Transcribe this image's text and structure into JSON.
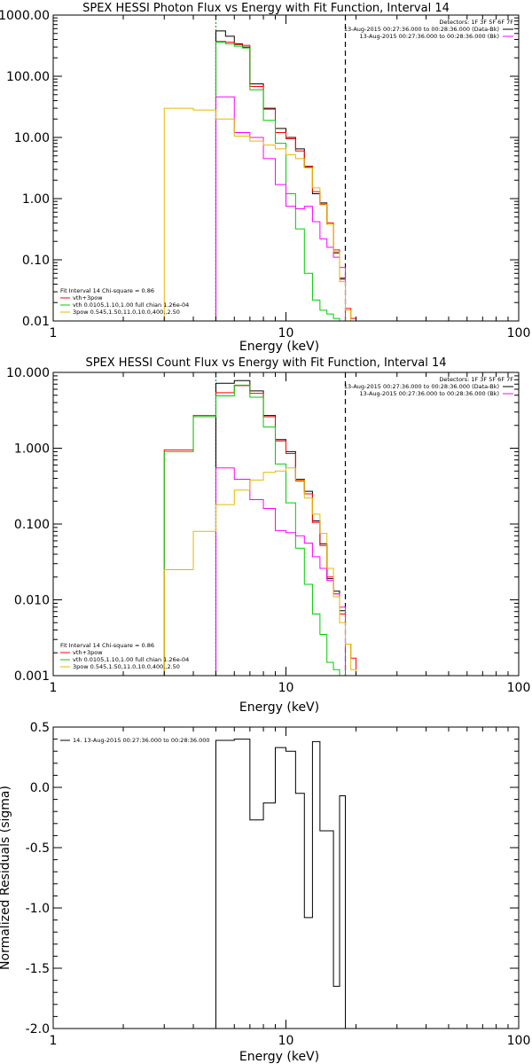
{
  "chart_data": [
    {
      "type": "line",
      "title": "SPEX HESSI Photon Flux vs Energy with Fit Function, Interval 14",
      "xlabel": "Energy (keV)",
      "ylabel": "",
      "xscale": "log",
      "yscale": "log",
      "xlim": [
        1,
        100
      ],
      "ylim": [
        0.01,
        1000
      ],
      "xticks": [
        {
          "v": 1,
          "label": "1"
        },
        {
          "v": 10,
          "label": "10"
        },
        {
          "v": 100,
          "label": "100"
        }
      ],
      "yticks": [
        {
          "v": 1000,
          "label": "1000.00"
        },
        {
          "v": 100,
          "label": "100.00"
        },
        {
          "v": 10,
          "label": "10.00"
        },
        {
          "v": 1,
          "label": "1.00"
        },
        {
          "v": 0.1,
          "label": "0.10"
        },
        {
          "v": 0.01,
          "label": "0.01"
        }
      ],
      "vlines": [
        {
          "x": 5.0,
          "color": "#ff00ff",
          "style": "dotted"
        },
        {
          "x": 5.0,
          "color": "#00cc00",
          "style": "dotted"
        },
        {
          "x": 18.0,
          "color": "#000000",
          "style": "dashed"
        }
      ],
      "right_labels": [
        {
          "text": "Detectors: 1F 3F 5F 6F 7F",
          "color": "#000000"
        },
        {
          "text": "13-Aug-2015 00:27:36.000 to 00:28:36.000 (Data-Bk)",
          "color": "#000000",
          "swatch": "#000000"
        },
        {
          "text": "13-Aug-2015 00:27:36.000 to 00:28:36.000 (Bk)",
          "color": "#000000",
          "swatch": "#ff00ff"
        }
      ],
      "left_labels": [
        {
          "text": "Fit Interval 14   Chi-square = 0.86",
          "color": "#000000"
        },
        {
          "text": "vth+3pow",
          "color": "#000000",
          "swatch": "#ff0000"
        },
        {
          "text": "vth 0.0105,1.10,1.00  full chian 1.26e-04",
          "color": "#000000",
          "swatch": "#00cc00"
        },
        {
          "text": "3pow 0.545,1.50,11.0,10.0,400.,2.50",
          "color": "#000000",
          "swatch": "#e6b800"
        }
      ],
      "series": [
        {
          "color": "#000000",
          "edges": [
            5.0,
            5.5,
            6.0,
            6.5,
            7.0,
            8.0,
            9.0,
            10.0,
            11.0,
            12.0,
            13.0,
            14.0,
            15.0,
            16.0,
            17.0,
            18.0
          ],
          "values": [
            550,
            450,
            340,
            300,
            75,
            30,
            14,
            10,
            6.5,
            3.3,
            1.2,
            0.85,
            0.38,
            0.13,
            0.05
          ]
        },
        {
          "color": "#ff0000",
          "edges": [
            5.0,
            5.5,
            6.0,
            6.5,
            7.0,
            8.0,
            9.0,
            10.0,
            11.0,
            12.0,
            13.0,
            14.0,
            15.0,
            16.0,
            17.0,
            18.0,
            19.0,
            20.0
          ],
          "values": [
            370,
            360,
            330,
            320,
            68,
            29,
            12,
            9.5,
            6,
            3.4,
            1.3,
            0.8,
            0.4,
            0.145,
            0.048,
            0.016,
            0.011
          ]
        },
        {
          "color": "#00cc00",
          "edges": [
            5.0,
            5.5,
            6.0,
            6.5,
            7.0,
            8.0,
            9.0,
            10.0,
            11.0,
            12.0,
            13.0,
            14.0,
            15.0,
            16.0,
            17.0
          ],
          "values": [
            360,
            340,
            310,
            290,
            60,
            19,
            8,
            1.2,
            0.32,
            0.06,
            0.022,
            0.015,
            0.013,
            0.011
          ]
        },
        {
          "color": "#ff00ff",
          "edges": [
            5.0,
            6.0,
            7.0,
            8.0,
            9.0,
            10.0,
            11.0,
            12.0,
            13.0,
            14.0,
            15.0,
            16.0,
            17.0,
            18.0
          ],
          "values": [
            46,
            12,
            10,
            4.5,
            1.7,
            0.75,
            0.68,
            0.75,
            0.42,
            0.22,
            0.16,
            0.11,
            0.075
          ]
        },
        {
          "color": "#e6b800",
          "edges": [
            3.0,
            4.0,
            5.0,
            6.0,
            7.0,
            8.0,
            9.0,
            10.0,
            11.0,
            12.0,
            13.0,
            14.0,
            15.0,
            16.0,
            17.0,
            18.0,
            19.0,
            20.0
          ],
          "values": [
            30,
            28,
            20,
            10.5,
            8.7,
            7.5,
            6.5,
            5.2,
            4.5,
            3.2,
            1.5,
            0.82,
            0.38,
            0.135,
            0.044,
            0.015,
            0.01
          ]
        }
      ]
    },
    {
      "type": "line",
      "title": "SPEX HESSI Count Flux vs Energy with Fit Function, Interval 14",
      "xlabel": "Energy (keV)",
      "ylabel": "",
      "xscale": "log",
      "yscale": "log",
      "xlim": [
        1,
        100
      ],
      "ylim": [
        0.001,
        10
      ],
      "xticks": [
        {
          "v": 1,
          "label": "1"
        },
        {
          "v": 10,
          "label": "10"
        },
        {
          "v": 100,
          "label": "100"
        }
      ],
      "yticks": [
        {
          "v": 10,
          "label": "10.000"
        },
        {
          "v": 1,
          "label": "1.000"
        },
        {
          "v": 0.1,
          "label": "0.100"
        },
        {
          "v": 0.01,
          "label": "0.010"
        },
        {
          "v": 0.001,
          "label": "0.001"
        }
      ],
      "vlines": [
        {
          "x": 5.0,
          "color": "#ff00ff",
          "style": "dotted"
        },
        {
          "x": 5.0,
          "color": "#00cc00",
          "style": "dotted"
        },
        {
          "x": 18.0,
          "color": "#000000",
          "style": "dashed"
        }
      ],
      "right_labels": [
        {
          "text": "Detectors: 1F 3F 5F 6F 7F",
          "color": "#000000"
        },
        {
          "text": "13-Aug-2015 00:27:36.000 to 00:28:36.000 (Data-Bk)",
          "color": "#000000",
          "swatch": "#000000"
        },
        {
          "text": "13-Aug-2015 00:27:36.000 to 00:28:36.000 (Bk)",
          "color": "#000000",
          "swatch": "#ff00ff"
        }
      ],
      "left_labels": [
        {
          "text": "Fit Interval 14   Chi-square = 0.86",
          "color": "#000000"
        },
        {
          "text": "vth+3pow",
          "color": "#000000",
          "swatch": "#ff0000"
        },
        {
          "text": "vth 0.0105,1.10,1.00  full chian 1.26e-04",
          "color": "#000000",
          "swatch": "#00cc00"
        },
        {
          "text": "3pow 0.545,1.50,11.0,10.0,400.,2.50",
          "color": "#000000",
          "swatch": "#e6b800"
        }
      ],
      "series": [
        {
          "color": "#000000",
          "edges": [
            5.0,
            6.0,
            7.0,
            8.0,
            9.0,
            10.0,
            11.0,
            12.0,
            13.0,
            14.0,
            15.0,
            16.0,
            17.0,
            18.0
          ],
          "values": [
            7.2,
            7.8,
            5.7,
            2.7,
            1.3,
            0.9,
            0.39,
            0.27,
            0.11,
            0.055,
            0.019,
            0.013,
            0.0072
          ]
        },
        {
          "color": "#ff0000",
          "edges": [
            3.0,
            4.0,
            5.0,
            6.0,
            7.0,
            8.0,
            9.0,
            10.0,
            11.0,
            12.0,
            13.0,
            14.0,
            15.0,
            16.0,
            17.0,
            18.0,
            19.0,
            20.0
          ],
          "values": [
            0.95,
            2.7,
            5.4,
            6.7,
            5.3,
            2.6,
            1.25,
            0.85,
            0.37,
            0.25,
            0.105,
            0.052,
            0.02,
            0.012,
            0.0065,
            0.0026,
            0.0017
          ]
        },
        {
          "color": "#00cc00",
          "edges": [
            3.0,
            4.0,
            5.0,
            6.0,
            7.0,
            8.0,
            9.0,
            10.0,
            11.0,
            12.0,
            13.0,
            14.0,
            15.0,
            16.0,
            17.0
          ],
          "values": [
            0.9,
            2.6,
            4.9,
            6.8,
            4.7,
            1.9,
            0.62,
            0.19,
            0.048,
            0.016,
            0.0065,
            0.0035,
            0.0015,
            0.0012
          ]
        },
        {
          "color": "#ff00ff",
          "edges": [
            5.0,
            6.0,
            7.0,
            8.0,
            9.0,
            10.0,
            11.0,
            12.0,
            13.0,
            14.0,
            15.0,
            16.0,
            17.0,
            18.0
          ],
          "values": [
            0.55,
            0.39,
            0.21,
            0.16,
            0.082,
            0.077,
            0.07,
            0.056,
            0.037,
            0.026,
            0.018,
            0.012,
            0.008
          ]
        },
        {
          "color": "#e6b800",
          "edges": [
            3.0,
            4.0,
            5.0,
            6.0,
            7.0,
            8.0,
            9.0,
            10.0,
            11.0,
            12.0,
            13.0,
            14.0,
            15.0,
            16.0,
            17.0,
            18.0,
            19.0,
            20.0
          ],
          "values": [
            0.025,
            0.08,
            0.18,
            0.28,
            0.38,
            0.48,
            0.5,
            0.55,
            0.38,
            0.22,
            0.135,
            0.075,
            0.026,
            0.011,
            0.005,
            0.0026,
            0.0012
          ]
        }
      ]
    },
    {
      "type": "line",
      "title": "",
      "xlabel": "Energy (keV)",
      "ylabel": "Normalized Residuals (sigma)",
      "xscale": "log",
      "yscale": "linear",
      "xlim": [
        1,
        100
      ],
      "ylim": [
        -2.0,
        0.5
      ],
      "xticks": [
        {
          "v": 1,
          "label": "1"
        },
        {
          "v": 10,
          "label": "10"
        },
        {
          "v": 100,
          "label": "100"
        }
      ],
      "yticks": [
        {
          "v": 0.5,
          "label": "0.5"
        },
        {
          "v": 0.0,
          "label": "0.0"
        },
        {
          "v": -0.5,
          "label": "-0.5"
        },
        {
          "v": -1.0,
          "label": "-1.0"
        },
        {
          "v": -1.5,
          "label": "-1.5"
        },
        {
          "v": -2.0,
          "label": "-2.0"
        }
      ],
      "vlines": [],
      "right_labels": [],
      "left_labels": [
        {
          "text": "14. 13-Aug-2015 00:27:36.000 to 00:28:36.000",
          "color": "#000000",
          "swatch": "#000000"
        }
      ],
      "series": [
        {
          "color": "#000000",
          "drop_to": -2.0,
          "edges": [
            5.0,
            6.0,
            7.0,
            8.0,
            9.0,
            10.0,
            11.0,
            12.0,
            13.0,
            14.0,
            15.0,
            16.0,
            17.0,
            18.0
          ],
          "values": [
            0.39,
            0.4,
            -0.27,
            -0.13,
            0.33,
            0.3,
            -0.05,
            -1.08,
            0.38,
            -0.36,
            -0.36,
            -1.65,
            -0.07
          ]
        }
      ]
    }
  ]
}
